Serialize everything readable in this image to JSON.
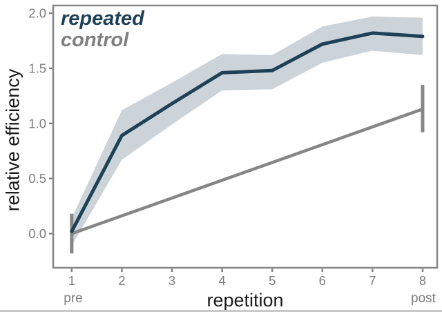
{
  "chart_data": {
    "type": "line",
    "title": "",
    "xlabel": "repetition",
    "ylabel": "relative efficiency",
    "x": [
      1,
      2,
      3,
      4,
      5,
      6,
      7,
      8
    ],
    "x_tick_labels": [
      "1",
      "2",
      "3",
      "4",
      "5",
      "6",
      "7",
      "8"
    ],
    "x_sub_labels": {
      "first": "pre",
      "last": "post"
    },
    "y_ticks": [
      0.0,
      0.5,
      1.0,
      1.5,
      2.0
    ],
    "y_tick_labels": [
      "0.0",
      "0.5",
      "1.0",
      "1.5",
      "2.0"
    ],
    "xlim": [
      0.63,
      8.29
    ],
    "ylim": [
      -0.31,
      2.07
    ],
    "grid": false,
    "legend_position": "top-left-inside",
    "axis_color": "#858585",
    "tick_color": "#7d7d7d",
    "series": [
      {
        "name": "repeated",
        "color": "#1e4157",
        "values": [
          0.02,
          0.89,
          1.18,
          1.46,
          1.48,
          1.72,
          1.82,
          1.79
        ],
        "band_upper": [
          0.14,
          1.12,
          1.37,
          1.63,
          1.62,
          1.88,
          1.97,
          1.96
        ],
        "band_lower": [
          -0.11,
          0.67,
          0.99,
          1.3,
          1.31,
          1.55,
          1.66,
          1.62
        ],
        "band_color": "#ccd4da"
      },
      {
        "name": "control",
        "color": "#868686",
        "points": [
          {
            "x": 1,
            "y": 0.0
          },
          {
            "x": 8,
            "y": 1.13
          }
        ],
        "error_bars": [
          {
            "x": 1,
            "low": -0.18,
            "high": 0.18
          },
          {
            "x": 8,
            "low": 0.92,
            "high": 1.35
          }
        ]
      }
    ]
  }
}
